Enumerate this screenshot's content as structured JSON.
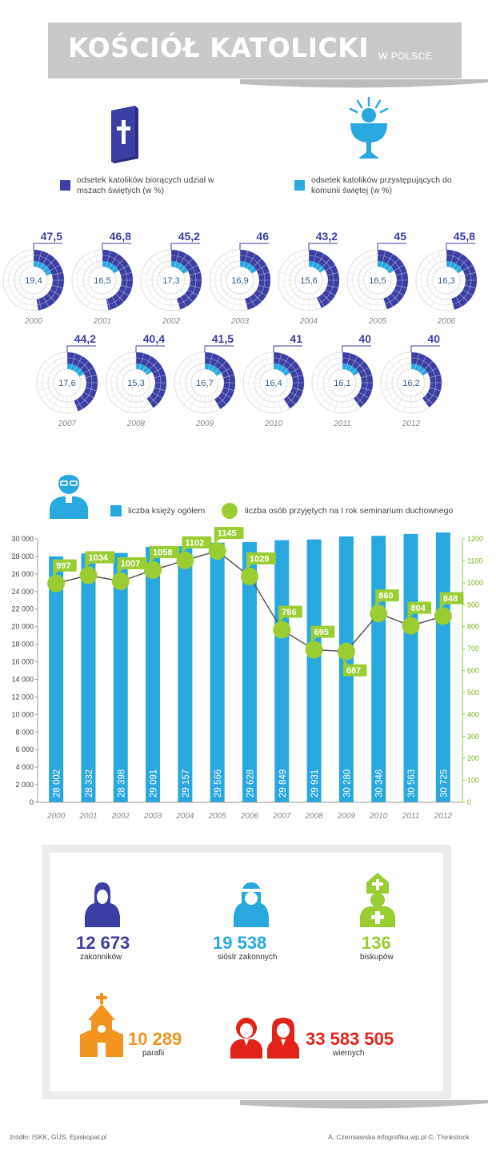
{
  "title": {
    "main": "KOŚCIÓŁ KATOLICKI",
    "sub": "W POLSCE"
  },
  "legend": {
    "mass": "odsetek katolików biorących udział w mszach świętych (w %)",
    "communion": "odsetek katolików przystępujących do komunii świętej (w %)",
    "mass_color": "#3b3ea3",
    "communion_color": "#29a8e0"
  },
  "bar_legend": {
    "priests": "liczba księży ogółem",
    "seminary": "liczba osób przyjętych na I rok seminarium duchownego"
  },
  "chart_data": [
    {
      "type": "pie",
      "years": [
        "2000",
        "2001",
        "2002",
        "2003",
        "2004",
        "2005",
        "2006",
        "2007",
        "2008",
        "2009",
        "2010",
        "2011",
        "2012"
      ],
      "series": [
        {
          "name": "odsetek katolików biorących udział w mszach świętych (w %)",
          "values": [
            47.5,
            46.8,
            45.2,
            46,
            43.2,
            45,
            45.8,
            44.2,
            40.4,
            41.5,
            41,
            40,
            40
          ],
          "labels": [
            "47,5",
            "46,8",
            "45,2",
            "46",
            "43,2",
            "45",
            "45,8",
            "44,2",
            "40,4",
            "41,5",
            "41",
            "40",
            "40"
          ]
        },
        {
          "name": "odsetek katolików przystępujących do komunii świętej (w %)",
          "values": [
            19.4,
            16.5,
            17.3,
            16.9,
            15.6,
            16.5,
            16.3,
            17.6,
            15.3,
            16.7,
            16.4,
            16.1,
            16.2
          ],
          "labels": [
            "19,4",
            "16,5",
            "17,3",
            "16,9",
            "15,6",
            "16,5",
            "16,3",
            "17,6",
            "15,3",
            "16,7",
            "16,4",
            "16,1",
            "16,2"
          ]
        }
      ]
    },
    {
      "type": "bar",
      "categories": [
        "2000",
        "2001",
        "2002",
        "2003",
        "2004",
        "2005",
        "2006",
        "2007",
        "2008",
        "2009",
        "2010",
        "2011",
        "2012"
      ],
      "series": [
        {
          "name": "liczba księży ogółem",
          "type": "bar",
          "axis": "left",
          "values": [
            28002,
            28332,
            28398,
            29091,
            29157,
            29566,
            29628,
            29849,
            29931,
            30280,
            30346,
            30563,
            30725
          ],
          "labels": [
            "28 002",
            "28 332",
            "28 398",
            "29 091",
            "29 157",
            "29 566",
            "29 628",
            "29 849",
            "29 931",
            "30 280",
            "30 346",
            "30 563",
            "30 725"
          ]
        },
        {
          "name": "liczba osób przyjętych na I rok seminarium duchownego",
          "type": "line",
          "axis": "right",
          "values": [
            997,
            1034,
            1007,
            1058,
            1102,
            1145,
            1029,
            786,
            695,
            687,
            860,
            804,
            848
          ]
        }
      ],
      "ylim_left": [
        0,
        30000
      ],
      "ylim_right": [
        0,
        1200
      ],
      "yticks_left": [
        "0",
        "2 000",
        "4 000",
        "6 000",
        "8 000",
        "10 000",
        "12 000",
        "14 000",
        "16 000",
        "18 000",
        "20 000",
        "22 000",
        "24 000",
        "26 000",
        "28 000",
        "30 000"
      ],
      "yticks_right": [
        "0",
        "100",
        "200",
        "300",
        "400",
        "500",
        "600",
        "700",
        "800",
        "900",
        "1000",
        "1100",
        "1200"
      ],
      "colors": {
        "bar": "#29a8e0",
        "line": "#555555",
        "point": "#9acd32"
      }
    }
  ],
  "stats": {
    "monks": {
      "value": "12 673",
      "label": "zakonników",
      "color": "#3b3ea3"
    },
    "nuns": {
      "value": "19 538",
      "label": "sióstr zakonnych",
      "color": "#29a8e0"
    },
    "bishops": {
      "value": "136",
      "label": "biskupów",
      "color": "#9acd32"
    },
    "parishes": {
      "value": "10 289",
      "label": "parafii",
      "color": "#f39320"
    },
    "faithful": {
      "value": "33 583 505",
      "label": "wiernych",
      "color": "#e2231a"
    }
  },
  "footer": {
    "source": "źródło: ISKK, GUS, Episkopat.pl",
    "credit": "A. Czerniawska infografika.wp.pl ©, Thinkstock"
  }
}
